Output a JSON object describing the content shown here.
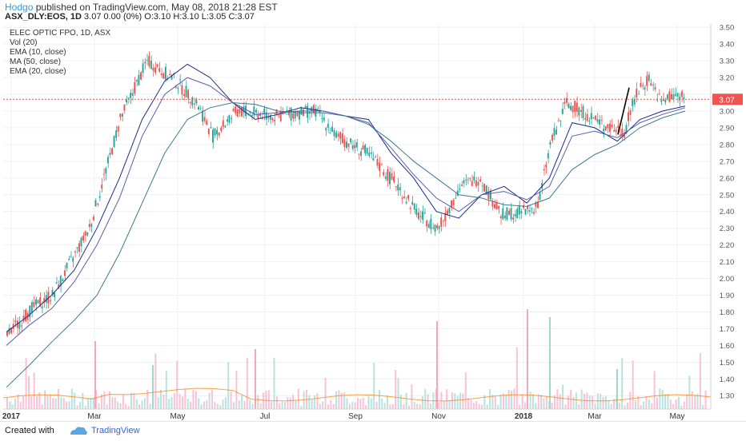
{
  "header": {
    "author": "Hodgo",
    "published": "published on TradingView.com, May 08, 2018 21:28 EST",
    "symbol": "ASX_DLY:EOS, 1D",
    "ohlc": "3.07 0.00 (0%) O:3.10 H:3.10 L:3.05 C:3.07"
  },
  "legend": {
    "title": "ELEC OPTIC FPO, 1D, ASX",
    "items": [
      "Vol (20)",
      "EMA (10, close)",
      "MA (50, close)",
      "EMA (20, close)"
    ]
  },
  "footer": {
    "created_with": "Created with",
    "brand": "TradingView"
  },
  "colors": {
    "up": "#26a69a",
    "down": "#ef5350",
    "ema10": "#1e2a8c",
    "ma50": "#3d7a8c",
    "ema20": "#5a5fa8",
    "vol_ma": "#f57c00",
    "last_price_badge": "#ef5350"
  },
  "chart_data": {
    "type": "candlestick",
    "title": "ELEC OPTIC FPO, 1D, ASX",
    "y_ticks": [
      "3.50",
      "3.40",
      "3.30",
      "3.20",
      "3.10",
      "3.00",
      "2.90",
      "2.80",
      "2.70",
      "2.60",
      "2.50",
      "2.40",
      "2.30",
      "2.20",
      "2.10",
      "2.00",
      "1.90",
      "1.80",
      "1.70",
      "1.60",
      "1.50",
      "1.40",
      "1.30"
    ],
    "ylim": [
      1.22,
      3.52
    ],
    "x_ticks": [
      "2017",
      "Mar",
      "May",
      "Jul",
      "Sep",
      "Nov",
      "2018",
      "Mar",
      "May"
    ],
    "last_price": 3.07,
    "last_price_label": "3.07",
    "series": [
      {
        "name": "EMA (10, close)",
        "values": [
          1.68,
          1.78,
          1.9,
          2.05,
          2.3,
          2.6,
          2.95,
          3.18,
          3.28,
          3.2,
          3.05,
          2.95,
          2.98,
          3.02,
          3.0,
          2.97,
          2.95,
          2.75,
          2.6,
          2.4,
          2.36,
          2.5,
          2.55,
          2.45,
          2.6,
          2.93,
          2.9,
          2.82,
          2.95,
          3.0,
          3.03
        ]
      },
      {
        "name": "EMA (20, close)",
        "values": [
          1.6,
          1.72,
          1.82,
          1.98,
          2.2,
          2.48,
          2.85,
          3.1,
          3.2,
          3.15,
          3.05,
          2.98,
          2.99,
          3.0,
          3.0,
          2.97,
          2.93,
          2.78,
          2.62,
          2.48,
          2.4,
          2.5,
          2.52,
          2.47,
          2.55,
          2.85,
          2.88,
          2.84,
          2.93,
          2.98,
          3.02
        ]
      },
      {
        "name": "MA (50, close)",
        "values": [
          1.35,
          1.48,
          1.62,
          1.75,
          1.9,
          2.15,
          2.45,
          2.75,
          2.95,
          3.02,
          3.05,
          3.04,
          3.0,
          2.99,
          2.99,
          2.97,
          2.92,
          2.82,
          2.7,
          2.6,
          2.5,
          2.48,
          2.44,
          2.43,
          2.48,
          2.65,
          2.74,
          2.8,
          2.9,
          2.96,
          3.0
        ]
      }
    ]
  }
}
